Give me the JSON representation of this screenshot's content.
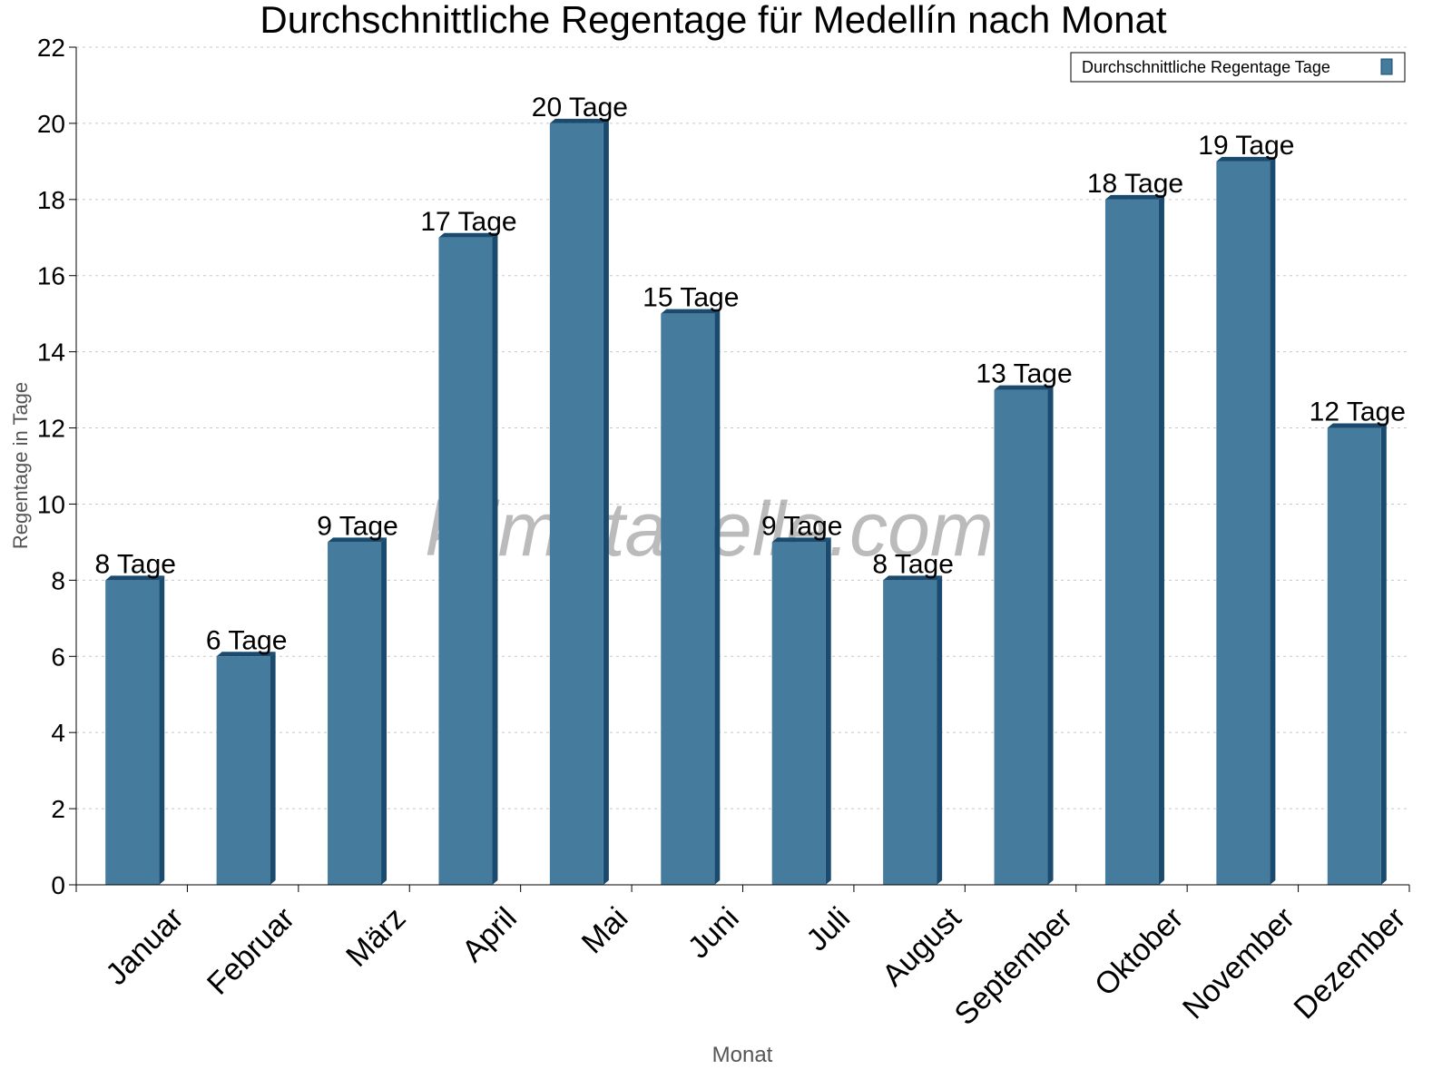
{
  "chart_data": {
    "type": "bar",
    "title": "Durchschnittliche Regentage für Medellín nach Monat",
    "xlabel": "Monat",
    "ylabel": "Regentage in Tage",
    "ylim": [
      0,
      22
    ],
    "yticks": [
      0,
      2,
      4,
      6,
      8,
      10,
      12,
      14,
      16,
      18,
      20,
      22
    ],
    "grid": true,
    "legend_position": "top-right",
    "categories": [
      "Januar",
      "Februar",
      "März",
      "April",
      "Mai",
      "Juni",
      "Juli",
      "August",
      "September",
      "Oktober",
      "November",
      "Dezember"
    ],
    "series": [
      {
        "name": "Durchschnittliche Regentage Tage",
        "values": [
          8,
          6,
          9,
          17,
          20,
          15,
          9,
          8,
          13,
          18,
          19,
          12
        ]
      }
    ],
    "data_labels": [
      "8 Tage",
      "6 Tage",
      "9 Tage",
      "17 Tage",
      "20 Tage",
      "15 Tage",
      "9 Tage",
      "8 Tage",
      "13 Tage",
      "18 Tage",
      "19 Tage",
      "12 Tage"
    ],
    "watermark": "klimatabelle.com",
    "colors": {
      "bar_front": "#457b9d",
      "bar_side": "#1a4a6e",
      "grid": "#c8c8c8"
    }
  }
}
